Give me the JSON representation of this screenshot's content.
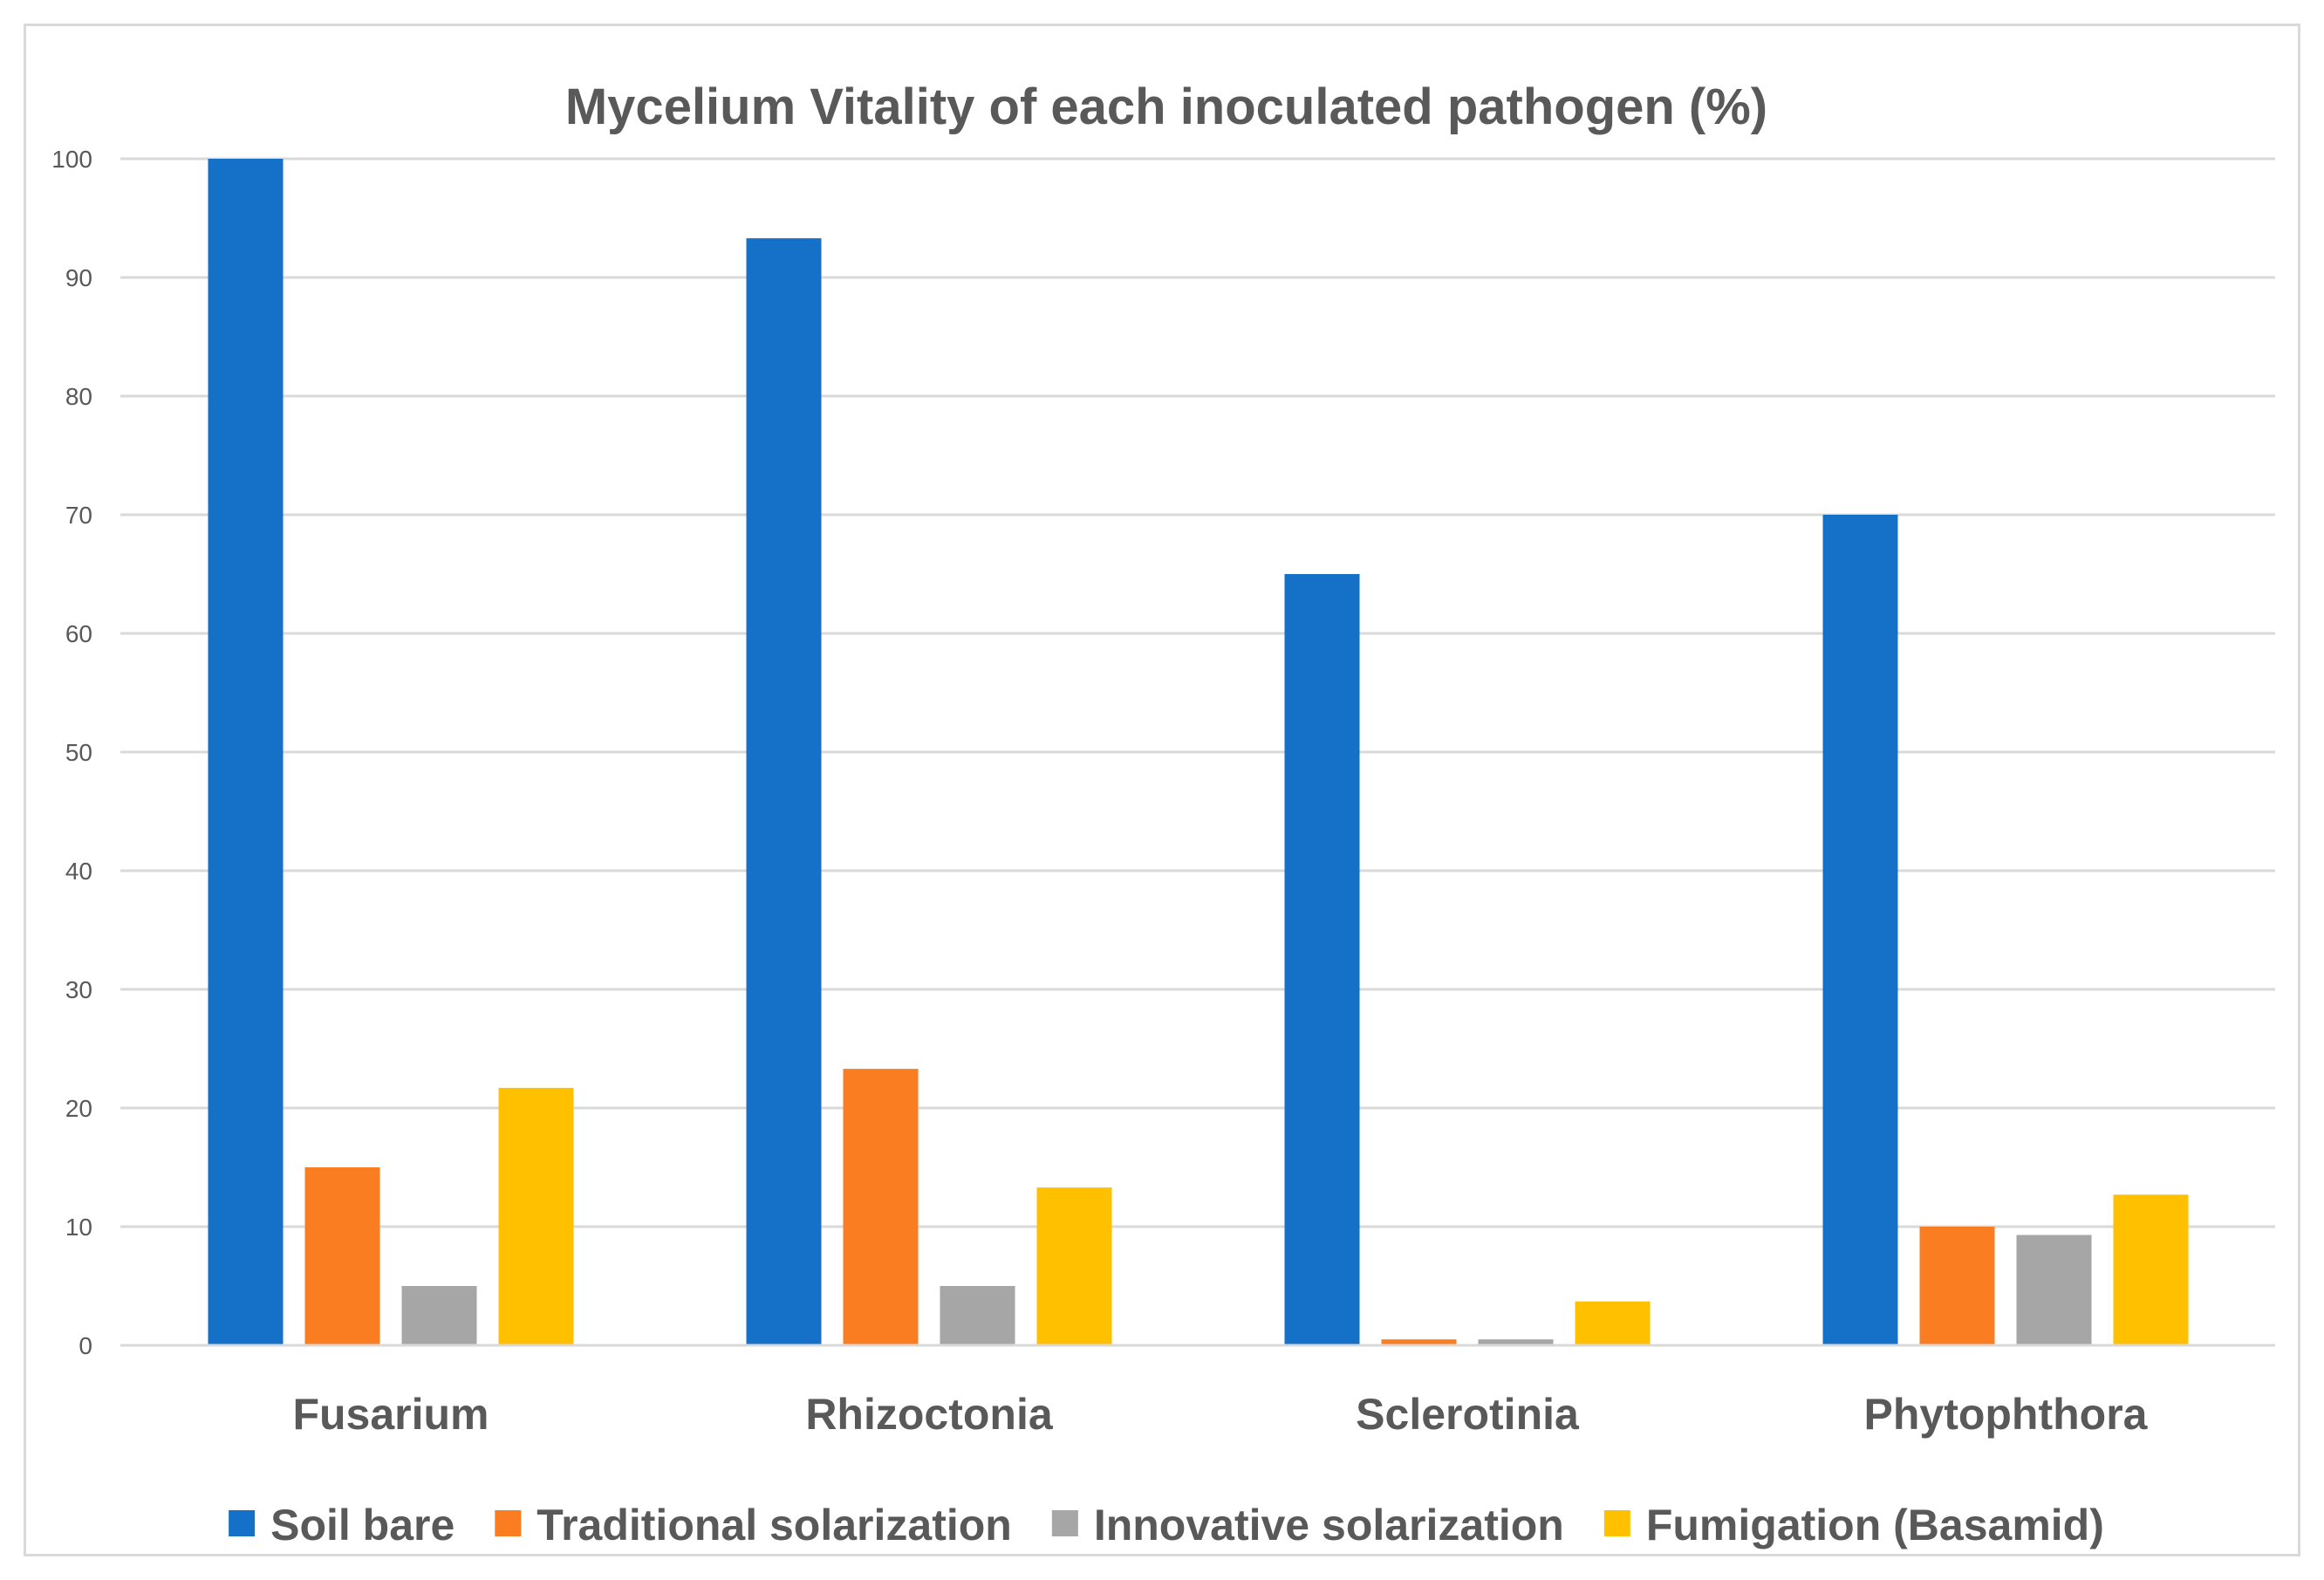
{
  "chart_data": {
    "type": "bar",
    "title": "Mycelium Vitality of each inoculated pathogen (%)",
    "xlabel": "",
    "ylabel": "",
    "ylim": [
      0,
      100
    ],
    "yticks": [
      0,
      10,
      20,
      30,
      40,
      50,
      60,
      70,
      80,
      90,
      100
    ],
    "grid": true,
    "legend_position": "bottom",
    "categories": [
      "Fusarium",
      "Rhizoctonia",
      "Sclerotinia",
      "Phytophthora"
    ],
    "series": [
      {
        "name": "Soil bare",
        "color": "#1570C8",
        "values": [
          100,
          93.3,
          65,
          70
        ]
      },
      {
        "name": "Traditional solarization",
        "color": "#FA7D22",
        "values": [
          15,
          23.3,
          0.5,
          10
        ]
      },
      {
        "name": "Innovative solarization",
        "color": "#A6A6A6",
        "values": [
          5,
          5,
          0.5,
          9.3
        ]
      },
      {
        "name": "Fumigation (Basamid)",
        "color": "#FFC000",
        "values": [
          21.7,
          13.3,
          3.7,
          12.7
        ]
      }
    ]
  }
}
